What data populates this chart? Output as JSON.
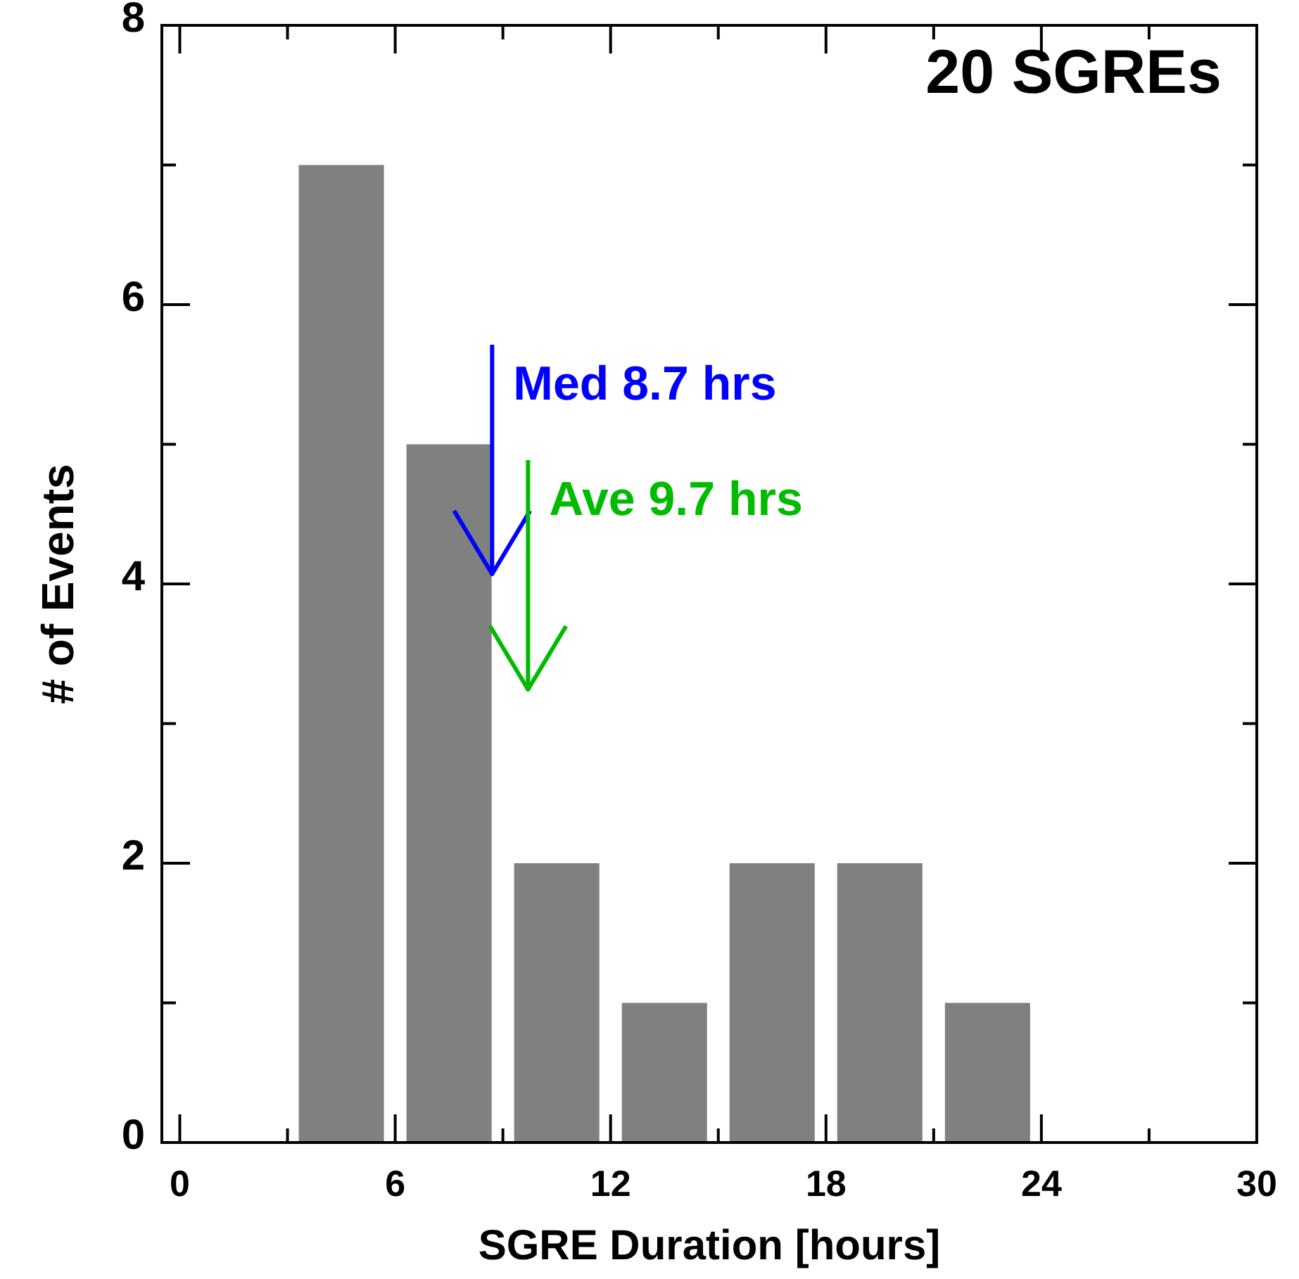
{
  "chart_data": {
    "type": "histogram",
    "xlabel": "SGRE Duration [hours]",
    "ylabel": "# of Events",
    "bins": [
      3,
      6,
      9,
      12,
      15,
      18,
      21,
      24
    ],
    "values": [
      7,
      5,
      2,
      1,
      2,
      2,
      1
    ],
    "color": "#808080",
    "xlim": [
      -0.5,
      30
    ],
    "xticks": [
      0,
      {
        "value": 3,
        "label": null
      },
      6,
      {
        "value": 9,
        "label": null
      },
      12,
      {
        "value": 15,
        "label": null
      },
      18,
      {
        "value": 21,
        "label": null
      },
      24,
      {
        "value": 27,
        "label": null
      },
      30
    ],
    "ylim": [
      0,
      8
    ],
    "yticks": [
      0,
      {
        "value": 1,
        "label": null
      },
      2,
      {
        "value": 3,
        "label": null
      },
      4,
      {
        "value": 5,
        "label": null
      },
      6,
      {
        "value": 7,
        "label": null
      },
      8
    ],
    "annotations": [
      "20 SGREs"
    ],
    "ref_lines": [
      {
        "axis": "x",
        "value": 8.7,
        "label": "Med 8.7 hrs",
        "color": "#0000ff"
      },
      {
        "axis": "x",
        "value": 9.7,
        "label": "Ave 9.7 hrs",
        "color": "#00bb00"
      }
    ]
  }
}
